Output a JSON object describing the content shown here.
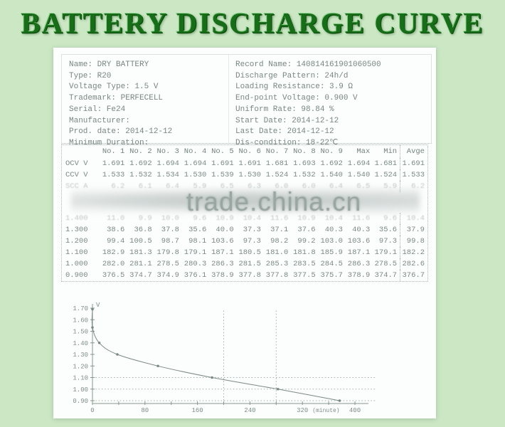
{
  "page": {
    "title": "BATTERY DISCHARGE CURVE"
  },
  "info_left": [
    {
      "label": "Name:",
      "value": "DRY BATTERY"
    },
    {
      "label": "Type:",
      "value": "R20"
    },
    {
      "label": "Voltage Type:",
      "value": "1.5 V"
    },
    {
      "label": "Trademark:",
      "value": "PERFECELL"
    },
    {
      "label": "Serial:",
      "value": "Fe24"
    },
    {
      "label": "Manufacturer:",
      "value": ""
    },
    {
      "label": "Prod. date:",
      "value": "2014-12-12"
    },
    {
      "label": "Minimum Duration:",
      "value": ""
    }
  ],
  "info_right": [
    {
      "label": "Record Name:",
      "value": "140814161901060500"
    },
    {
      "label": "Discharge Pattern:",
      "value": "24h/d"
    },
    {
      "label": "Loading Resistance:",
      "value": "3.9 Ω"
    },
    {
      "label": "End-point Voltage:",
      "value": "0.900 V"
    },
    {
      "label": "Uniform Rate:",
      "value": "98.84 %"
    },
    {
      "label": "Start Date:",
      "value": "2014-12-12"
    },
    {
      "label": "Last Date:",
      "value": "2014-12-12"
    },
    {
      "label": "Dis-condition:",
      "value": "18-22℃"
    }
  ],
  "table": {
    "headers": [
      "",
      "No. 1",
      "No. 2",
      "No. 3",
      "No. 4",
      "No. 5",
      "No. 6",
      "No. 7",
      "No. 8",
      "No. 9",
      "Max",
      "Min",
      "Avge"
    ],
    "rows": [
      {
        "label": "OCV V",
        "faded": false,
        "values": [
          "1.691",
          "1.692",
          "1.694",
          "1.694",
          "1.691",
          "1.691",
          "1.681",
          "1.693",
          "1.692",
          "1.694",
          "1.681",
          "1.691"
        ]
      },
      {
        "label": "CCV V",
        "faded": false,
        "values": [
          "1.533",
          "1.532",
          "1.534",
          "1.530",
          "1.539",
          "1.530",
          "1.524",
          "1.532",
          "1.540",
          "1.540",
          "1.524",
          "1.533"
        ]
      },
      {
        "label": "SCC A",
        "faded": true,
        "values": [
          "6.2",
          "6.1",
          "6.4",
          "5.9",
          "6.5",
          "6.3",
          "6.0",
          "6.0",
          "6.4",
          "6.5",
          "5.9",
          "6.2"
        ]
      },
      {
        "label": "1.400",
        "faded": true,
        "values": [
          "11.0",
          "9.9",
          "10.0",
          "9.6",
          "10.9",
          "10.4",
          "11.6",
          "10.9",
          "10.4",
          "11.6",
          "9.6",
          "10.4"
        ]
      },
      {
        "label": "1.300",
        "faded": false,
        "values": [
          "38.6",
          "36.8",
          "37.8",
          "35.6",
          "40.0",
          "37.3",
          "37.1",
          "37.6",
          "40.3",
          "40.3",
          "35.6",
          "37.9"
        ]
      },
      {
        "label": "1.200",
        "faded": false,
        "values": [
          "99.4",
          "100.5",
          "98.7",
          "98.1",
          "103.6",
          "97.3",
          "98.2",
          "99.2",
          "103.0",
          "103.6",
          "97.3",
          "99.8"
        ]
      },
      {
        "label": "1.100",
        "faded": false,
        "values": [
          "182.9",
          "181.3",
          "179.8",
          "179.1",
          "187.1",
          "180.5",
          "181.0",
          "181.8",
          "185.9",
          "187.1",
          "179.1",
          "182.2"
        ]
      },
      {
        "label": "1.000",
        "faded": false,
        "values": [
          "282.0",
          "281.1",
          "278.5",
          "280.3",
          "286.3",
          "281.5",
          "285.3",
          "283.5",
          "284.5",
          "286.3",
          "278.5",
          "282.6"
        ]
      },
      {
        "label": "0.900",
        "faded": false,
        "values": [
          "376.5",
          "374.7",
          "374.9",
          "376.1",
          "378.9",
          "377.8",
          "377.8",
          "377.5",
          "375.7",
          "378.9",
          "374.7",
          "376.7"
        ]
      }
    ]
  },
  "watermark": "trade.china.cn",
  "chart_data": {
    "type": "line",
    "title": "",
    "xlabel": "(minute)",
    "ylabel": "V",
    "x": [
      0,
      0,
      10.4,
      37.9,
      99.8,
      182.2,
      282.6,
      376.7
    ],
    "y": [
      1.691,
      1.533,
      1.4,
      1.3,
      1.2,
      1.1,
      1.0,
      0.9
    ],
    "xlim": [
      0,
      420
    ],
    "ylim": [
      0.9,
      1.7
    ],
    "x_ticks": [
      0,
      80,
      160,
      240,
      320,
      400
    ],
    "x_minor_tick_step": 40,
    "y_ticks": [
      "1.70",
      "1.60",
      "1.50",
      "1.40",
      "1.30",
      "1.20",
      "1.10",
      "1.00",
      "0.90"
    ],
    "h_gridlines": [
      1.1,
      1.0,
      0.9
    ],
    "v_gridlines": [
      200,
      280
    ],
    "grid": "dotted-partial",
    "legend": "none"
  }
}
